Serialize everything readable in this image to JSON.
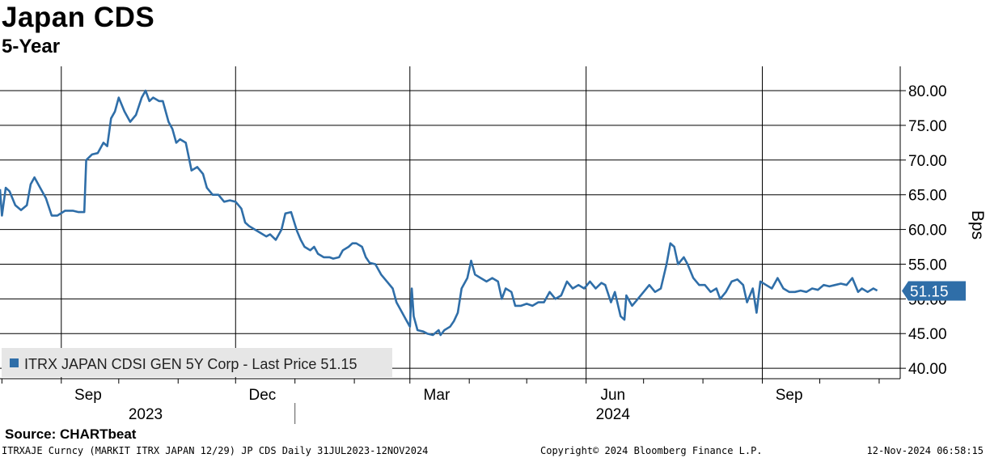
{
  "header": {
    "title": "Japan CDS",
    "subtitle": "5-Year"
  },
  "footer": {
    "source": "Source: CHARTbeat",
    "ticker_info": "ITRXAJE Curncy (MARKIT ITRX JAPAN 12/29) JP CDS  Daily 31JUL2023-12NOV2024",
    "copyright": "Copyright© 2024 Bloomberg Finance L.P.",
    "timestamp": "12-Nov-2024 06:58:15"
  },
  "chart_data": {
    "type": "line",
    "ylabel": "Bps",
    "ylim": [
      38.5,
      83.5
    ],
    "y_ticks": [
      40,
      45,
      50,
      55,
      60,
      65,
      70,
      75,
      80
    ],
    "y_tick_labels": [
      "40.00",
      "45.00",
      "50.00",
      "55.00",
      "60.00",
      "65.00",
      "70.00",
      "75.00",
      "80.00"
    ],
    "x_range": [
      "2023-07-31",
      "2024-11-12"
    ],
    "x_month_labels": [
      {
        "label": "Sep",
        "date": "2023-09-15"
      },
      {
        "label": "Dec",
        "date": "2023-12-15"
      },
      {
        "label": "Mar",
        "date": "2024-03-15"
      },
      {
        "label": "Jun",
        "date": "2024-06-15"
      },
      {
        "label": "Sep",
        "date": "2024-09-15"
      }
    ],
    "x_gridlines": [
      "2023-09-01",
      "2023-12-01",
      "2024-03-01",
      "2024-06-01",
      "2024-09-01"
    ],
    "x_year_labels": [
      {
        "label": "2023",
        "date": "2023-10-15"
      },
      {
        "label": "2024",
        "date": "2024-06-15"
      }
    ],
    "year_divider": "2024-01-01",
    "grid": true,
    "legend_position": "bottom-left",
    "legend_text": "ITRX JAPAN CDSI GEN 5Y Corp - Last Price 51.15",
    "last_value_label": "51.15",
    "last_value": 51.15,
    "series": [
      {
        "name": "ITRX JAPAN CDSI GEN 5Y Corp - Last Price",
        "color": "#2f6ea8",
        "points": [
          [
            "2023-07-31",
            65.8
          ],
          [
            "2023-08-01",
            62.0
          ],
          [
            "2023-08-03",
            66.0
          ],
          [
            "2023-08-05",
            65.5
          ],
          [
            "2023-08-08",
            63.5
          ],
          [
            "2023-08-11",
            62.8
          ],
          [
            "2023-08-14",
            63.5
          ],
          [
            "2023-08-16",
            66.5
          ],
          [
            "2023-08-18",
            67.5
          ],
          [
            "2023-08-21",
            66.0
          ],
          [
            "2023-08-24",
            64.5
          ],
          [
            "2023-08-27",
            62.0
          ],
          [
            "2023-08-30",
            62.0
          ],
          [
            "2023-09-03",
            62.7
          ],
          [
            "2023-09-07",
            62.7
          ],
          [
            "2023-09-10",
            62.5
          ],
          [
            "2023-09-13",
            62.5
          ],
          [
            "2023-09-14",
            70.0
          ],
          [
            "2023-09-17",
            70.8
          ],
          [
            "2023-09-20",
            71.0
          ],
          [
            "2023-09-23",
            72.5
          ],
          [
            "2023-09-25",
            72.0
          ],
          [
            "2023-09-27",
            76.0
          ],
          [
            "2023-09-29",
            77.0
          ],
          [
            "2023-10-01",
            79.0
          ],
          [
            "2023-10-04",
            77.0
          ],
          [
            "2023-10-07",
            75.5
          ],
          [
            "2023-10-10",
            76.5
          ],
          [
            "2023-10-13",
            79.0
          ],
          [
            "2023-10-15",
            80.0
          ],
          [
            "2023-10-17",
            78.5
          ],
          [
            "2023-10-19",
            79.0
          ],
          [
            "2023-10-22",
            78.5
          ],
          [
            "2023-10-24",
            78.5
          ],
          [
            "2023-10-27",
            75.5
          ],
          [
            "2023-10-29",
            74.5
          ],
          [
            "2023-10-31",
            72.5
          ],
          [
            "2023-11-02",
            73.0
          ],
          [
            "2023-11-05",
            72.5
          ],
          [
            "2023-11-08",
            68.5
          ],
          [
            "2023-11-11",
            69.0
          ],
          [
            "2023-11-14",
            68.0
          ],
          [
            "2023-11-16",
            66.0
          ],
          [
            "2023-11-19",
            65.0
          ],
          [
            "2023-11-22",
            65.0
          ],
          [
            "2023-11-25",
            64.0
          ],
          [
            "2023-11-28",
            64.2
          ],
          [
            "2023-12-01",
            64.0
          ],
          [
            "2023-12-04",
            63.0
          ],
          [
            "2023-12-06",
            61.0
          ],
          [
            "2023-12-08",
            60.5
          ],
          [
            "2023-12-11",
            60.0
          ],
          [
            "2023-12-14",
            59.5
          ],
          [
            "2023-12-17",
            59.0
          ],
          [
            "2023-12-19",
            59.3
          ],
          [
            "2023-12-22",
            58.5
          ],
          [
            "2023-12-25",
            60.0
          ],
          [
            "2023-12-27",
            62.3
          ],
          [
            "2023-12-30",
            62.5
          ],
          [
            "2024-01-02",
            59.8
          ],
          [
            "2024-01-04",
            58.5
          ],
          [
            "2024-01-06",
            57.5
          ],
          [
            "2024-01-09",
            57.0
          ],
          [
            "2024-01-11",
            57.5
          ],
          [
            "2024-01-13",
            56.5
          ],
          [
            "2024-01-16",
            56.0
          ],
          [
            "2024-01-19",
            56.0
          ],
          [
            "2024-01-21",
            55.8
          ],
          [
            "2024-01-24",
            56.0
          ],
          [
            "2024-01-26",
            57.0
          ],
          [
            "2024-01-29",
            57.5
          ],
          [
            "2024-01-31",
            58.0
          ],
          [
            "2024-02-02",
            58.0
          ],
          [
            "2024-02-05",
            57.5
          ],
          [
            "2024-02-07",
            56.0
          ],
          [
            "2024-02-09",
            55.2
          ],
          [
            "2024-02-12",
            55.0
          ],
          [
            "2024-02-15",
            53.5
          ],
          [
            "2024-02-18",
            52.5
          ],
          [
            "2024-02-21",
            51.5
          ],
          [
            "2024-02-23",
            49.5
          ],
          [
            "2024-02-26",
            48.0
          ],
          [
            "2024-02-28",
            47.0
          ],
          [
            "2024-03-01",
            46.0
          ],
          [
            "2024-03-02",
            51.5
          ],
          [
            "2024-03-03",
            47.5
          ],
          [
            "2024-03-05",
            45.5
          ],
          [
            "2024-03-08",
            45.3
          ],
          [
            "2024-03-10",
            45.0
          ],
          [
            "2024-03-13",
            44.8
          ],
          [
            "2024-03-16",
            45.5
          ],
          [
            "2024-03-17",
            44.8
          ],
          [
            "2024-03-19",
            45.5
          ],
          [
            "2024-03-22",
            46.0
          ],
          [
            "2024-03-24",
            46.8
          ],
          [
            "2024-03-26",
            48.0
          ],
          [
            "2024-03-28",
            51.5
          ],
          [
            "2024-03-31",
            53.0
          ],
          [
            "2024-04-02",
            55.5
          ],
          [
            "2024-04-04",
            53.5
          ],
          [
            "2024-04-07",
            53.0
          ],
          [
            "2024-04-10",
            52.5
          ],
          [
            "2024-04-13",
            53.0
          ],
          [
            "2024-04-16",
            52.5
          ],
          [
            "2024-04-18",
            50.0
          ],
          [
            "2024-04-20",
            51.5
          ],
          [
            "2024-04-23",
            51.0
          ],
          [
            "2024-04-25",
            49.0
          ],
          [
            "2024-04-28",
            49.0
          ],
          [
            "2024-05-01",
            49.3
          ],
          [
            "2024-05-04",
            49.0
          ],
          [
            "2024-05-07",
            49.5
          ],
          [
            "2024-05-10",
            49.5
          ],
          [
            "2024-05-13",
            51.0
          ],
          [
            "2024-05-16",
            50.0
          ],
          [
            "2024-05-19",
            50.5
          ],
          [
            "2024-05-22",
            52.5
          ],
          [
            "2024-05-25",
            51.5
          ],
          [
            "2024-05-28",
            52.0
          ],
          [
            "2024-05-31",
            51.5
          ],
          [
            "2024-06-03",
            52.5
          ],
          [
            "2024-06-06",
            51.5
          ],
          [
            "2024-06-09",
            52.3
          ],
          [
            "2024-06-11",
            52.0
          ],
          [
            "2024-06-14",
            49.5
          ],
          [
            "2024-06-16",
            51.0
          ],
          [
            "2024-06-19",
            47.5
          ],
          [
            "2024-06-21",
            47.0
          ],
          [
            "2024-06-22",
            50.5
          ],
          [
            "2024-06-25",
            49.0
          ],
          [
            "2024-06-28",
            50.0
          ],
          [
            "2024-07-01",
            51.0
          ],
          [
            "2024-07-04",
            52.0
          ],
          [
            "2024-07-07",
            51.0
          ],
          [
            "2024-07-10",
            51.5
          ],
          [
            "2024-07-13",
            55.0
          ],
          [
            "2024-07-15",
            58.0
          ],
          [
            "2024-07-17",
            57.5
          ],
          [
            "2024-07-19",
            55.0
          ],
          [
            "2024-07-22",
            56.0
          ],
          [
            "2024-07-24",
            55.0
          ],
          [
            "2024-07-27",
            53.0
          ],
          [
            "2024-07-30",
            52.0
          ],
          [
            "2024-08-02",
            52.0
          ],
          [
            "2024-08-05",
            51.0
          ],
          [
            "2024-08-08",
            51.5
          ],
          [
            "2024-08-10",
            50.0
          ],
          [
            "2024-08-13",
            51.0
          ],
          [
            "2024-08-16",
            52.5
          ],
          [
            "2024-08-19",
            52.8
          ],
          [
            "2024-08-22",
            52.0
          ],
          [
            "2024-08-24",
            49.5
          ],
          [
            "2024-08-27",
            51.5
          ],
          [
            "2024-08-29",
            48.0
          ],
          [
            "2024-08-31",
            52.5
          ],
          [
            "2024-09-03",
            52.0
          ],
          [
            "2024-09-06",
            51.5
          ],
          [
            "2024-09-09",
            53.0
          ],
          [
            "2024-09-12",
            51.5
          ],
          [
            "2024-09-15",
            51.0
          ],
          [
            "2024-09-18",
            51.0
          ],
          [
            "2024-09-21",
            51.2
          ],
          [
            "2024-09-24",
            51.0
          ],
          [
            "2024-09-27",
            51.5
          ],
          [
            "2024-09-30",
            51.3
          ],
          [
            "2024-10-03",
            52.0
          ],
          [
            "2024-10-06",
            51.8
          ],
          [
            "2024-10-09",
            52.0
          ],
          [
            "2024-10-12",
            52.2
          ],
          [
            "2024-10-15",
            52.0
          ],
          [
            "2024-10-18",
            53.0
          ],
          [
            "2024-10-21",
            51.0
          ],
          [
            "2024-10-23",
            51.5
          ],
          [
            "2024-10-26",
            51.0
          ],
          [
            "2024-10-29",
            51.5
          ],
          [
            "2024-10-31",
            51.2
          ]
        ]
      }
    ]
  }
}
